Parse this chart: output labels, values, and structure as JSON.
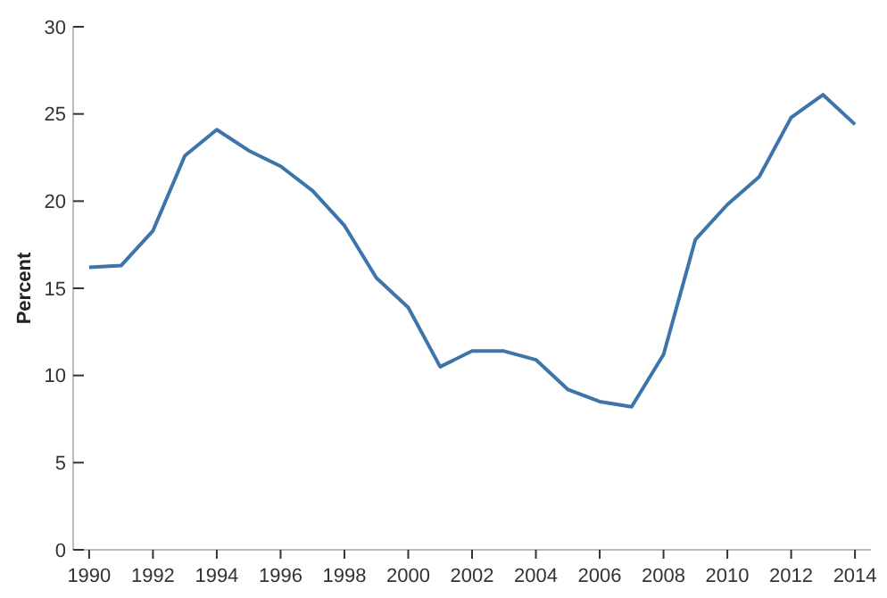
{
  "chart_data": {
    "type": "line",
    "ylabel": "Percent",
    "x": [
      1990,
      1991,
      1992,
      1993,
      1994,
      1995,
      1996,
      1997,
      1998,
      1999,
      2000,
      2001,
      2002,
      2003,
      2004,
      2005,
      2006,
      2007,
      2008,
      2009,
      2010,
      2011,
      2012,
      2013,
      2014
    ],
    "series": [
      {
        "color": "#3d74aa",
        "values": [
          16.2,
          16.3,
          18.3,
          22.6,
          24.1,
          22.9,
          22.0,
          20.6,
          18.6,
          15.6,
          13.9,
          10.5,
          11.4,
          11.4,
          10.9,
          9.2,
          8.5,
          8.2,
          11.2,
          17.8,
          19.8,
          21.4,
          24.8,
          26.1,
          24.4
        ]
      }
    ],
    "xlim": [
      1989.5,
      2014.5
    ],
    "xticks": [
      1990,
      1992,
      1994,
      1996,
      1998,
      2000,
      2002,
      2004,
      2006,
      2008,
      2010,
      2012,
      2014
    ],
    "ylim": [
      0,
      30
    ],
    "yticks": [
      0,
      5,
      10,
      15,
      20,
      25,
      30
    ],
    "grid": false
  }
}
